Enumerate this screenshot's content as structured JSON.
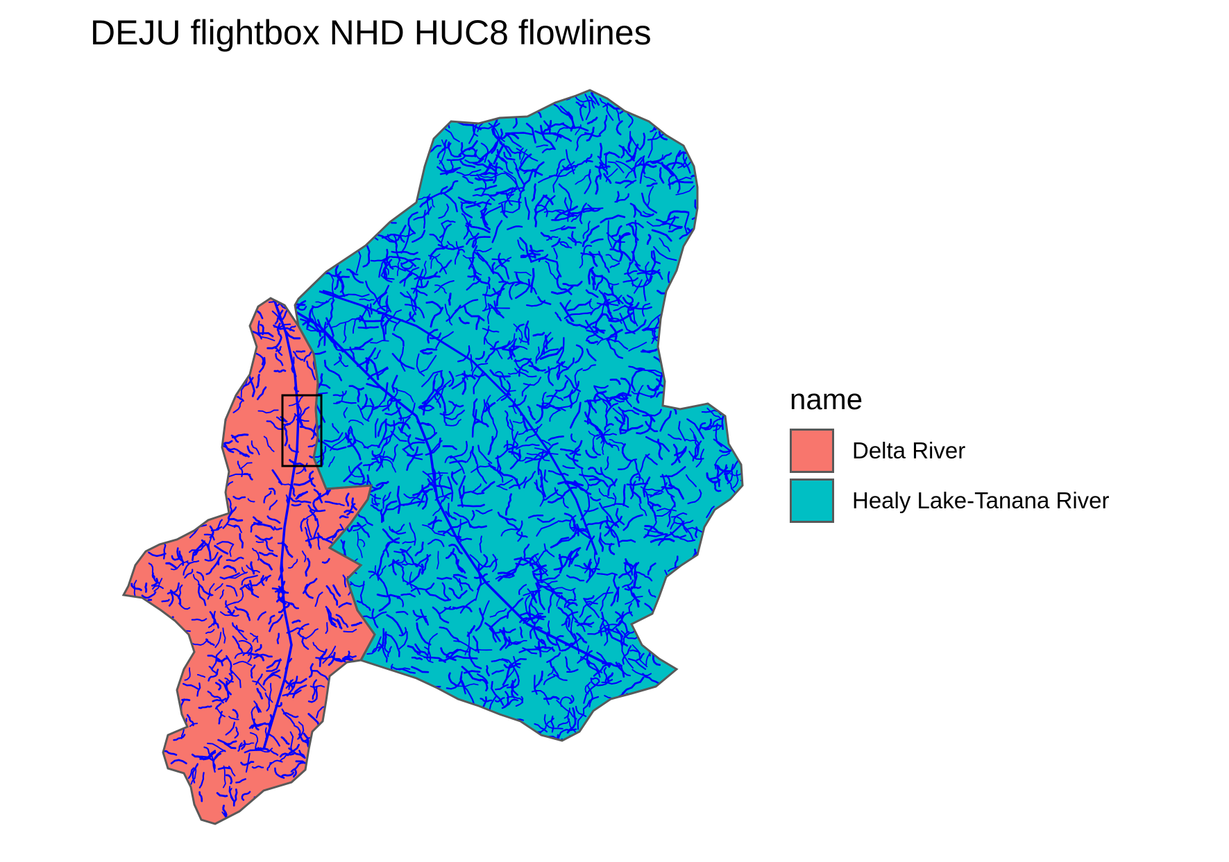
{
  "title": "DEJU flightbox NHD HUC8 flowlines",
  "legend": {
    "title": "name",
    "items": [
      {
        "label": "Delta River",
        "color": "#F8766D"
      },
      {
        "label": "Healy Lake-Tanana River",
        "color": "#00BFC4"
      }
    ]
  },
  "style": {
    "flowline_color": "#0000FF",
    "boundary_color": "#595959",
    "flightbox_color": "#000000"
  }
}
